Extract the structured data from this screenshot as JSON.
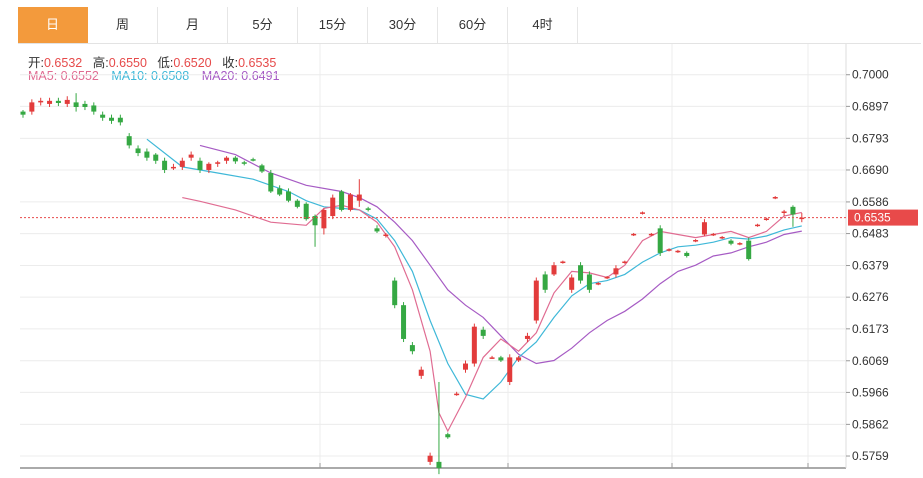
{
  "tabs": [
    {
      "label": "日",
      "active": true
    },
    {
      "label": "周",
      "active": false
    },
    {
      "label": "月",
      "active": false
    },
    {
      "label": "5分",
      "active": false
    },
    {
      "label": "15分",
      "active": false
    },
    {
      "label": "30分",
      "active": false
    },
    {
      "label": "60分",
      "active": false
    },
    {
      "label": "4时",
      "active": false
    }
  ],
  "ohlc": {
    "open_label": "开:",
    "open": "0.6532",
    "high_label": "高:",
    "high": "0.6550",
    "low_label": "低:",
    "low": "0.6520",
    "close_label": "收:",
    "close": "0.6535"
  },
  "ma": {
    "ma5_text": "MA5: 0.6552",
    "ma10_text": "MA10: 0.6508",
    "ma20_text": "MA20: 0.6491"
  },
  "colors": {
    "up": "#e23b3b",
    "down": "#35a843",
    "ma5": "#e06c92",
    "ma10": "#3fb8d8",
    "ma20": "#a65bc4",
    "active_tab": "#f39a3c",
    "price_line": "#e84a4a"
  },
  "chart_data": {
    "type": "candlestick",
    "y_ticks": [
      "0.7000",
      "0.6897",
      "0.6793",
      "0.6690",
      "0.6586",
      "0.6483",
      "0.6379",
      "0.6276",
      "0.6173",
      "0.6069",
      "0.5966",
      "0.5862",
      "0.5759"
    ],
    "ylim": [
      0.572,
      0.71
    ],
    "current_price": "0.6535",
    "candles": [
      [
        0.688,
        0.687,
        0.6885,
        0.686
      ],
      [
        0.688,
        0.691,
        0.692,
        0.687
      ],
      [
        0.691,
        0.6915,
        0.6925,
        0.69
      ],
      [
        0.6905,
        0.6915,
        0.6925,
        0.6895
      ],
      [
        0.6915,
        0.6908,
        0.6925,
        0.6898
      ],
      [
        0.6905,
        0.6918,
        0.693,
        0.6895
      ],
      [
        0.691,
        0.6895,
        0.694,
        0.688
      ],
      [
        0.6905,
        0.6895,
        0.6915,
        0.6885
      ],
      [
        0.69,
        0.688,
        0.691,
        0.687
      ],
      [
        0.687,
        0.686,
        0.688,
        0.685
      ],
      [
        0.686,
        0.685,
        0.687,
        0.684
      ],
      [
        0.686,
        0.6845,
        0.687,
        0.6835
      ],
      [
        0.68,
        0.677,
        0.681,
        0.676
      ],
      [
        0.676,
        0.6745,
        0.677,
        0.6735
      ],
      [
        0.675,
        0.673,
        0.676,
        0.672
      ],
      [
        0.674,
        0.672,
        0.6745,
        0.671
      ],
      [
        0.672,
        0.669,
        0.673,
        0.668
      ],
      [
        0.67,
        0.67,
        0.671,
        0.669
      ],
      [
        0.67,
        0.672,
        0.673,
        0.669
      ],
      [
        0.673,
        0.674,
        0.675,
        0.672
      ],
      [
        0.672,
        0.669,
        0.673,
        0.668
      ],
      [
        0.669,
        0.671,
        0.6715,
        0.668
      ],
      [
        0.671,
        0.6715,
        0.672,
        0.67
      ],
      [
        0.672,
        0.673,
        0.6735,
        0.671
      ],
      [
        0.673,
        0.6718,
        0.6735,
        0.671
      ],
      [
        0.6715,
        0.6712,
        0.672,
        0.6705
      ],
      [
        0.6725,
        0.6722,
        0.673,
        0.6718
      ],
      [
        0.6705,
        0.6685,
        0.671,
        0.668
      ],
      [
        0.668,
        0.662,
        0.669,
        0.6615
      ],
      [
        0.663,
        0.661,
        0.664,
        0.6605
      ],
      [
        0.662,
        0.659,
        0.663,
        0.6585
      ],
      [
        0.659,
        0.657,
        0.6595,
        0.6565
      ],
      [
        0.658,
        0.653,
        0.6585,
        0.6525
      ],
      [
        0.654,
        0.651,
        0.6545,
        0.644
      ],
      [
        0.65,
        0.656,
        0.6565,
        0.648
      ],
      [
        0.654,
        0.66,
        0.661,
        0.653
      ],
      [
        0.662,
        0.656,
        0.6625,
        0.6555
      ],
      [
        0.656,
        0.661,
        0.6615,
        0.6555
      ],
      [
        0.659,
        0.661,
        0.666,
        0.657
      ],
      [
        0.6565,
        0.656,
        0.657,
        0.6555
      ],
      [
        0.65,
        0.649,
        0.651,
        0.6485
      ],
      [
        0.648,
        0.648,
        0.6485,
        0.647
      ],
      [
        0.633,
        0.625,
        0.634,
        0.624
      ],
      [
        0.625,
        0.614,
        0.626,
        0.613
      ],
      [
        0.612,
        0.61,
        0.613,
        0.609
      ],
      [
        0.602,
        0.604,
        0.605,
        0.601
      ],
      [
        0.574,
        0.576,
        0.577,
        0.573
      ],
      [
        0.574,
        0.572,
        0.6,
        0.57
      ],
      [
        0.583,
        0.582,
        0.5835,
        0.5815
      ],
      [
        0.596,
        0.5962,
        0.5968,
        0.5955
      ],
      [
        0.604,
        0.606,
        0.607,
        0.603
      ],
      [
        0.606,
        0.618,
        0.619,
        0.605
      ],
      [
        0.617,
        0.615,
        0.618,
        0.614
      ],
      [
        0.608,
        0.608,
        0.6085,
        0.6075
      ],
      [
        0.608,
        0.607,
        0.6085,
        0.6065
      ],
      [
        0.6,
        0.608,
        0.609,
        0.599
      ],
      [
        0.607,
        0.608,
        0.6085,
        0.6065
      ],
      [
        0.614,
        0.615,
        0.616,
        0.613
      ],
      [
        0.62,
        0.633,
        0.634,
        0.619
      ],
      [
        0.635,
        0.63,
        0.636,
        0.629
      ],
      [
        0.635,
        0.638,
        0.639,
        0.6345
      ],
      [
        0.639,
        0.6392,
        0.6395,
        0.6385
      ],
      [
        0.63,
        0.634,
        0.635,
        0.629
      ],
      [
        0.638,
        0.633,
        0.639,
        0.632
      ],
      [
        0.635,
        0.63,
        0.636,
        0.629
      ],
      [
        0.632,
        0.6322,
        0.6325,
        0.6315
      ],
      [
        0.634,
        0.6342,
        0.6345,
        0.6335
      ],
      [
        0.635,
        0.637,
        0.638,
        0.634
      ],
      [
        0.639,
        0.6392,
        0.6395,
        0.6385
      ],
      [
        0.648,
        0.6482,
        0.6485,
        0.6475
      ],
      [
        0.655,
        0.6552,
        0.6555,
        0.6545
      ],
      [
        0.648,
        0.6482,
        0.6485,
        0.6475
      ],
      [
        0.65,
        0.642,
        0.651,
        0.641
      ],
      [
        0.643,
        0.6432,
        0.6435,
        0.6425
      ],
      [
        0.6425,
        0.6427,
        0.643,
        0.642
      ],
      [
        0.642,
        0.641,
        0.6425,
        0.6405
      ],
      [
        0.646,
        0.6462,
        0.6465,
        0.6455
      ],
      [
        0.648,
        0.652,
        0.653,
        0.6475
      ],
      [
        0.648,
        0.6482,
        0.6485,
        0.6475
      ],
      [
        0.647,
        0.6472,
        0.6475,
        0.6465
      ],
      [
        0.646,
        0.645,
        0.6465,
        0.6445
      ],
      [
        0.645,
        0.6452,
        0.6455,
        0.6445
      ],
      [
        0.646,
        0.64,
        0.647,
        0.6395
      ],
      [
        0.651,
        0.6512,
        0.6515,
        0.6505
      ],
      [
        0.653,
        0.6532,
        0.6535,
        0.6525
      ],
      [
        0.66,
        0.6602,
        0.6605,
        0.6595
      ],
      [
        0.655,
        0.6555,
        0.656,
        0.654
      ],
      [
        0.657,
        0.6545,
        0.6575,
        0.6505
      ],
      [
        0.6532,
        0.6535,
        0.655,
        0.652
      ]
    ],
    "ma5": [
      [
        18,
        0.66
      ],
      [
        20,
        0.6588
      ],
      [
        24,
        0.656
      ],
      [
        28,
        0.652
      ],
      [
        32,
        0.651
      ],
      [
        34,
        0.6565
      ],
      [
        36,
        0.6575
      ],
      [
        38,
        0.656
      ],
      [
        40,
        0.652
      ],
      [
        42,
        0.644
      ],
      [
        44,
        0.63
      ],
      [
        46,
        0.61
      ],
      [
        47,
        0.59
      ],
      [
        48,
        0.584
      ],
      [
        50,
        0.595
      ],
      [
        52,
        0.608
      ],
      [
        54,
        0.614
      ],
      [
        56,
        0.61
      ],
      [
        58,
        0.616
      ],
      [
        60,
        0.629
      ],
      [
        62,
        0.636
      ],
      [
        64,
        0.6355
      ],
      [
        66,
        0.634
      ],
      [
        68,
        0.638
      ],
      [
        70,
        0.646
      ],
      [
        72,
        0.649
      ],
      [
        74,
        0.648
      ],
      [
        76,
        0.647
      ],
      [
        78,
        0.648
      ],
      [
        80,
        0.649
      ],
      [
        82,
        0.647
      ],
      [
        84,
        0.649
      ],
      [
        86,
        0.654
      ],
      [
        88,
        0.6552
      ]
    ],
    "ma10": [
      [
        14,
        0.679
      ],
      [
        18,
        0.67
      ],
      [
        22,
        0.668
      ],
      [
        26,
        0.666
      ],
      [
        30,
        0.662
      ],
      [
        32,
        0.659
      ],
      [
        34,
        0.657
      ],
      [
        36,
        0.6565
      ],
      [
        38,
        0.656
      ],
      [
        40,
        0.653
      ],
      [
        42,
        0.646
      ],
      [
        44,
        0.636
      ],
      [
        46,
        0.62
      ],
      [
        48,
        0.606
      ],
      [
        50,
        0.596
      ],
      [
        52,
        0.5945
      ],
      [
        54,
        0.6
      ],
      [
        56,
        0.608
      ],
      [
        58,
        0.613
      ],
      [
        60,
        0.621
      ],
      [
        62,
        0.628
      ],
      [
        64,
        0.632
      ],
      [
        66,
        0.633
      ],
      [
        68,
        0.635
      ],
      [
        70,
        0.639
      ],
      [
        72,
        0.642
      ],
      [
        74,
        0.644
      ],
      [
        76,
        0.6445
      ],
      [
        78,
        0.6455
      ],
      [
        80,
        0.647
      ],
      [
        82,
        0.6465
      ],
      [
        84,
        0.6475
      ],
      [
        86,
        0.6495
      ],
      [
        88,
        0.6508
      ]
    ],
    "ma20": [
      [
        20,
        0.677
      ],
      [
        24,
        0.674
      ],
      [
        28,
        0.668
      ],
      [
        32,
        0.664
      ],
      [
        36,
        0.662
      ],
      [
        38,
        0.66
      ],
      [
        40,
        0.657
      ],
      [
        42,
        0.652
      ],
      [
        44,
        0.646
      ],
      [
        46,
        0.638
      ],
      [
        48,
        0.63
      ],
      [
        50,
        0.625
      ],
      [
        52,
        0.621
      ],
      [
        54,
        0.615
      ],
      [
        56,
        0.609
      ],
      [
        58,
        0.606
      ],
      [
        60,
        0.607
      ],
      [
        62,
        0.611
      ],
      [
        64,
        0.616
      ],
      [
        66,
        0.62
      ],
      [
        68,
        0.623
      ],
      [
        70,
        0.627
      ],
      [
        72,
        0.632
      ],
      [
        74,
        0.636
      ],
      [
        76,
        0.638
      ],
      [
        78,
        0.641
      ],
      [
        80,
        0.642
      ],
      [
        82,
        0.644
      ],
      [
        84,
        0.6455
      ],
      [
        86,
        0.648
      ],
      [
        88,
        0.6491
      ]
    ]
  }
}
